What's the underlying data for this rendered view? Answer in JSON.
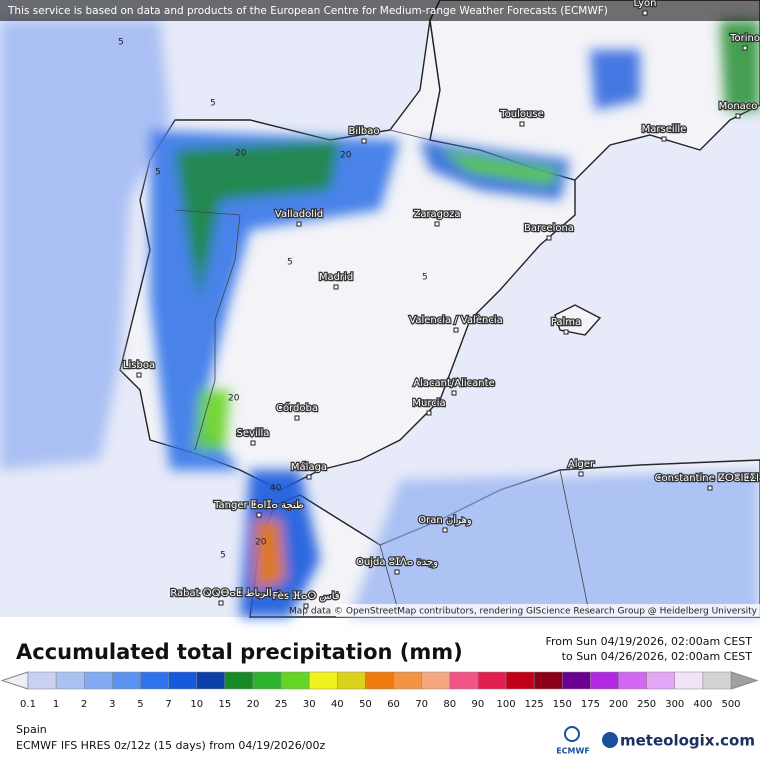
{
  "banner": "This service is based on data and products of the European Centre for Medium-range Weather Forecasts (ECMWF)",
  "cities": [
    "Lyon",
    "Torino",
    "Monaco",
    "Bilbao",
    "Toulouse",
    "Marseille",
    "Valladolid",
    "Zaragoza",
    "Barcelona",
    "Madrid",
    "Valencia / València",
    "Palma",
    "Lisboa",
    "Alacant/Alicante",
    "Murcia",
    "Córdoba",
    "Sevilla",
    "Málaga",
    "Alger",
    "Constantine ⵇⵙⴻⵏⵟⵉⵏⴰ",
    "Tanger ⵟⴰⵏⵊⴰ طنجة",
    "Oran وهران",
    "Oujda ⵓⵊⴷⴰ وجدة",
    "Rabat ⵕⵕⴱⴰⵟ الرباط",
    "Fès ⴼⴰⵙ فاس"
  ],
  "contour_labels": [
    5,
    5,
    5,
    5,
    20,
    20,
    20,
    40,
    5,
    5,
    20
  ],
  "map_credit": "Map data © OpenStreetMap contributors, rendering GIScience Research Group @ Heidelberg University",
  "title": "Accumulated total precipitation (mm)",
  "period_from": "From Sun 04/19/2026, 02:00am CEST",
  "period_to": "to Sun 04/26/2026, 02:00am CEST",
  "legend": {
    "labels": [
      0.1,
      1,
      2,
      3,
      5,
      7,
      10,
      15,
      20,
      25,
      30,
      40,
      50,
      60,
      70,
      80,
      90,
      100,
      125,
      150,
      175,
      200,
      250,
      300,
      400,
      500
    ],
    "colors": [
      "#c9d0f2",
      "#a9c2f3",
      "#84aaf1",
      "#5b92ef",
      "#2f74ee",
      "#1559dc",
      "#0d3fa8",
      "#178a27",
      "#2fb22f",
      "#66d424",
      "#f2f21e",
      "#dcd21a",
      "#f07a10",
      "#f29444",
      "#f3a882",
      "#f25485",
      "#e0204f",
      "#c00018",
      "#8c0018",
      "#6c0090",
      "#b228e2",
      "#d068f2",
      "#e2a6f4",
      "#f2e4f8",
      "#d2d2d2"
    ],
    "under_color": "#eeeefb",
    "over_color": "#a0a0a0"
  },
  "region": "Spain",
  "model": "ECMWF IFS HRES 0z/12z (15 days) from  04/19/2026/00z",
  "logo_ecmwf": "ECMWF",
  "logo_brand": "meteologix.com"
}
